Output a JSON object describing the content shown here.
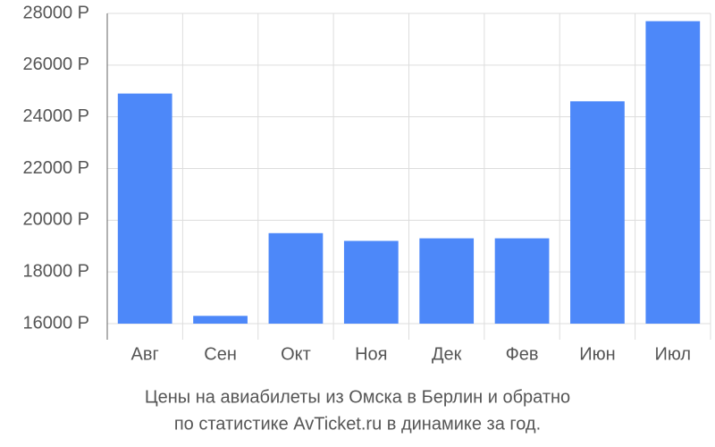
{
  "chart_data": {
    "type": "bar",
    "title": [
      "Цены на авиабилеты из Омска в Берлин и обратно",
      "по статистике AvTicket.ru в динамике за год."
    ],
    "categories": [
      "Авг",
      "Сен",
      "Окт",
      "Ноя",
      "Дек",
      "Фев",
      "Июн",
      "Июл"
    ],
    "values": [
      24900,
      16300,
      19500,
      19200,
      19300,
      19300,
      24600,
      27700
    ],
    "color": "#4d88f9",
    "ylim": [
      16000,
      28000
    ],
    "yticks": [
      {
        "value": 16000,
        "label": "16000 Р"
      },
      {
        "value": 18000,
        "label": "18000 Р"
      },
      {
        "value": 20000,
        "label": "20000 Р"
      },
      {
        "value": 22000,
        "label": "22000 Р"
      },
      {
        "value": 24000,
        "label": "24000 Р"
      },
      {
        "value": 26000,
        "label": "26000 Р"
      },
      {
        "value": 28000,
        "label": "28000 Р"
      }
    ],
    "grid": true
  }
}
